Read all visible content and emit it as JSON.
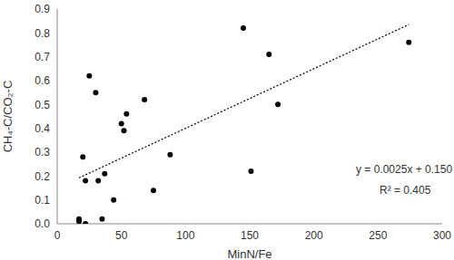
{
  "chart_data": {
    "type": "scatter",
    "x_label": "MinN/Fe",
    "y_label": "CH₄-C/CO₂-C",
    "x": [
      17,
      17,
      20,
      22,
      22,
      25,
      30,
      32,
      35,
      37,
      44,
      50,
      52,
      54,
      68,
      75,
      88,
      145,
      151,
      165,
      172,
      274
    ],
    "values": [
      0.02,
      0.01,
      0.28,
      0.0,
      0.18,
      0.62,
      0.55,
      0.18,
      0.02,
      0.21,
      0.1,
      0.42,
      0.39,
      0.46,
      0.52,
      0.14,
      0.29,
      0.82,
      0.22,
      0.71,
      0.5,
      0.76
    ],
    "color": "#000000",
    "marker": "circle",
    "xlim": [
      0,
      300
    ],
    "xticks": [
      0,
      50,
      100,
      150,
      200,
      250,
      300
    ],
    "ylim": [
      0,
      0.9
    ],
    "yticks": [
      {
        "value": 0,
        "label": "0.0"
      },
      0.1,
      0.2,
      0.3,
      0.4,
      0.5,
      0.6,
      0.7,
      0.8,
      0.9
    ],
    "grid": false,
    "trendline": {
      "slope": 0.0025,
      "intercept": 0.15,
      "color": "#000000",
      "line_style": "dotted"
    },
    "annotations": [
      "y = 0.0025x + 0.150",
      "R² = 0.405"
    ]
  }
}
